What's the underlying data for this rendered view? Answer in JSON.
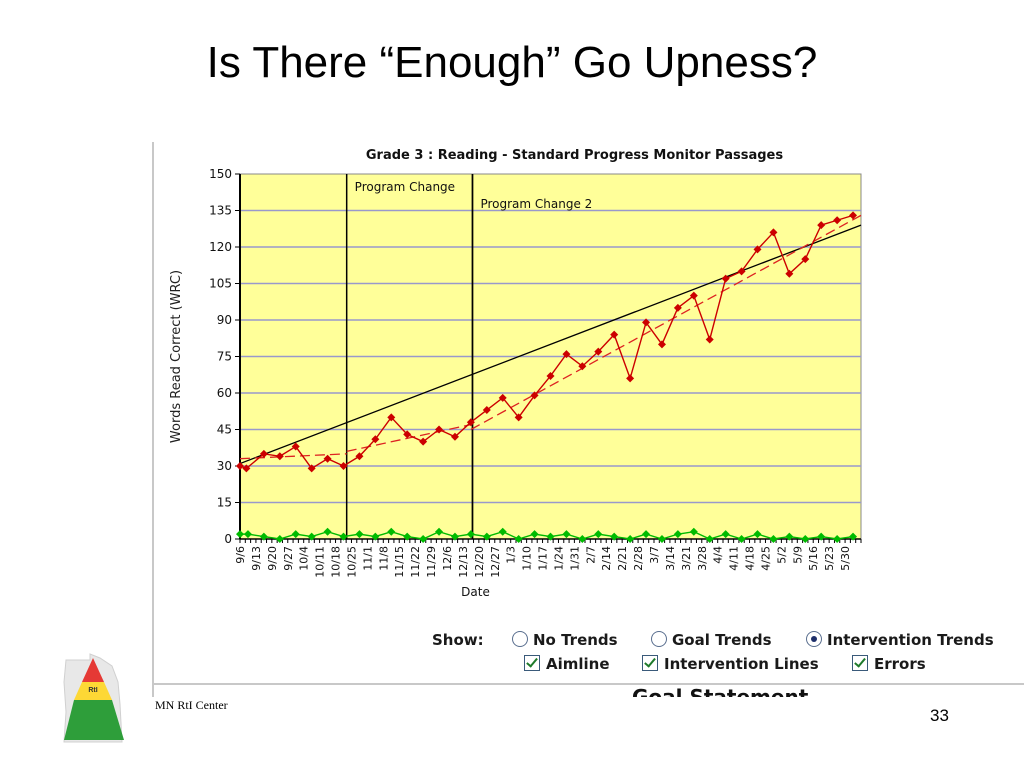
{
  "slide": {
    "title": "Is There “Enough” Go Upness?",
    "footer": "MN RtI Center",
    "page_number": "33",
    "logo_text": "RtI"
  },
  "controls": {
    "show_label": "Show:",
    "radios": [
      {
        "label": "No Trends",
        "selected": false
      },
      {
        "label": "Goal Trends",
        "selected": false
      },
      {
        "label": "Intervention Trends",
        "selected": true
      }
    ],
    "checkboxes": [
      {
        "label": "Aimline",
        "checked": true
      },
      {
        "label": "Intervention Lines",
        "checked": true
      },
      {
        "label": "Errors",
        "checked": true
      }
    ],
    "goal_statement": "Goal Statement"
  },
  "chart_data": {
    "type": "line",
    "title": "Grade 3 : Reading - Standard Progress Monitor Passages",
    "xlabel": "Date",
    "ylabel": "Words Read Correct (WRC)",
    "ylim": [
      0,
      150
    ],
    "yticks": [
      0,
      15,
      30,
      45,
      60,
      75,
      90,
      105,
      120,
      135,
      150
    ],
    "grid": true,
    "categories": [
      "9/6",
      "9/13",
      "9/20",
      "9/27",
      "10/4",
      "10/11",
      "10/18",
      "10/25",
      "11/1",
      "11/8",
      "11/15",
      "11/22",
      "11/29",
      "12/6",
      "12/13",
      "12/20",
      "12/27",
      "1/3",
      "1/10",
      "1/17",
      "1/24",
      "1/31",
      "2/7",
      "2/14",
      "2/21",
      "2/28",
      "3/7",
      "3/14",
      "3/21",
      "3/28",
      "4/4",
      "4/11",
      "4/18",
      "4/25",
      "5/2",
      "5/9",
      "5/16",
      "5/23",
      "5/30"
    ],
    "series": [
      {
        "name": "Words Read Correct",
        "color": "#cc0000",
        "points": [
          [
            0,
            30
          ],
          [
            0.4,
            29
          ],
          [
            1.5,
            35
          ],
          [
            2.5,
            34
          ],
          [
            3.5,
            38
          ],
          [
            4.5,
            29
          ],
          [
            5.5,
            33
          ],
          [
            6.5,
            30
          ],
          [
            7.5,
            34
          ],
          [
            8.5,
            41
          ],
          [
            9.5,
            50
          ],
          [
            10.5,
            43
          ],
          [
            11.5,
            40
          ],
          [
            12.5,
            45
          ],
          [
            13.5,
            42
          ],
          [
            14.5,
            48
          ],
          [
            15.5,
            53
          ],
          [
            16.5,
            58
          ],
          [
            17.5,
            50
          ],
          [
            18.5,
            59
          ],
          [
            19.5,
            67
          ],
          [
            20.5,
            76
          ],
          [
            21.5,
            71
          ],
          [
            22.5,
            77
          ],
          [
            23.5,
            84
          ],
          [
            24.5,
            66
          ],
          [
            25.5,
            89
          ],
          [
            26.5,
            80
          ],
          [
            27.5,
            95
          ],
          [
            28.5,
            100
          ],
          [
            29.5,
            82
          ],
          [
            30.5,
            107
          ],
          [
            31.5,
            110
          ],
          [
            32.5,
            119
          ],
          [
            33.5,
            126
          ],
          [
            34.5,
            109
          ],
          [
            35.5,
            115
          ],
          [
            36.5,
            129
          ],
          [
            37.5,
            131
          ],
          [
            38.5,
            133
          ]
        ]
      },
      {
        "name": "Errors",
        "color": "#00bb00",
        "points": [
          [
            0,
            2
          ],
          [
            0.5,
            2
          ],
          [
            1.5,
            1
          ],
          [
            2.5,
            0
          ],
          [
            3.5,
            2
          ],
          [
            4.5,
            1
          ],
          [
            5.5,
            3
          ],
          [
            6.5,
            1
          ],
          [
            7.5,
            2
          ],
          [
            8.5,
            1
          ],
          [
            9.5,
            3
          ],
          [
            10.5,
            1
          ],
          [
            11.5,
            0
          ],
          [
            12.5,
            3
          ],
          [
            13.5,
            1
          ],
          [
            14.5,
            2
          ],
          [
            15.5,
            1
          ],
          [
            16.5,
            3
          ],
          [
            17.5,
            0
          ],
          [
            18.5,
            2
          ],
          [
            19.5,
            1
          ],
          [
            20.5,
            2
          ],
          [
            21.5,
            0
          ],
          [
            22.5,
            2
          ],
          [
            23.5,
            1
          ],
          [
            24.5,
            0
          ],
          [
            25.5,
            2
          ],
          [
            26.5,
            0
          ],
          [
            27.5,
            2
          ],
          [
            28.5,
            3
          ],
          [
            29.5,
            0
          ],
          [
            30.5,
            2
          ],
          [
            31.5,
            0
          ],
          [
            32.5,
            2
          ],
          [
            33.5,
            0
          ],
          [
            34.5,
            1
          ],
          [
            35.5,
            0
          ],
          [
            36.5,
            1
          ],
          [
            37.5,
            0
          ],
          [
            38.5,
            1
          ]
        ]
      }
    ],
    "aimline": {
      "color": "#000000",
      "start": [
        0,
        31
      ],
      "end": [
        39,
        129
      ]
    },
    "trend_lines": [
      {
        "color": "#dd2222",
        "start": [
          0,
          33
        ],
        "end": [
          6.7,
          35
        ]
      },
      {
        "color": "#dd2222",
        "start": [
          6.7,
          36
        ],
        "end": [
          14.5,
          47
        ]
      },
      {
        "color": "#dd2222",
        "start": [
          14.5,
          45
        ],
        "end": [
          39,
          133
        ]
      }
    ],
    "intervention_lines": [
      {
        "label": "Program Change",
        "x": 6.7
      },
      {
        "label": "Program Change 2",
        "x": 14.6
      }
    ],
    "colors": {
      "plot_background": "#ffff99",
      "gridline": "#9999cc"
    }
  }
}
